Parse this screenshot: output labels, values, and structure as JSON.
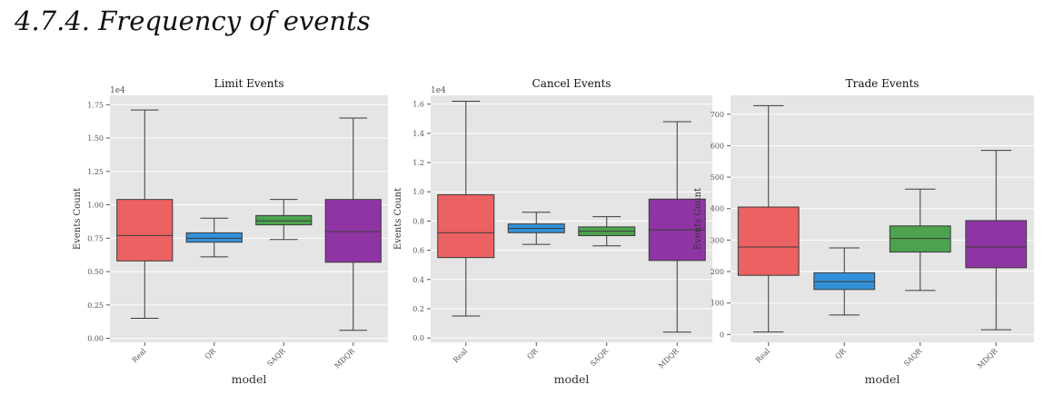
{
  "section": {
    "heading": "4.7.4.  Frequency of events"
  },
  "colors": {
    "panel_bg": "#e5e5e5",
    "grid": "#ffffff",
    "box_edge": "#3a3a3a",
    "series": {
      "Real": "#ec6162",
      "QR": "#3491d9",
      "SAQR": "#4da24f",
      "MDQR": "#8e35a3"
    }
  },
  "chart_data": [
    {
      "type": "box",
      "title": "Limit Events",
      "xlabel": "model",
      "ylabel": "Events Count",
      "scale_label": "1e4",
      "categories": [
        "Real",
        "QR",
        "SAQR",
        "MDQR"
      ],
      "ylim": [
        -0.03,
        1.82
      ],
      "yticks": [
        0.0,
        0.25,
        0.5,
        0.75,
        1.0,
        1.25,
        1.5,
        1.75
      ],
      "ytick_labels": [
        "0.00",
        "0.25",
        "0.50",
        "0.75",
        "1.00",
        "1.25",
        "1.50",
        "1.75"
      ],
      "grid": true,
      "boxes": [
        {
          "category": "Real",
          "whisker_low": 0.15,
          "q1": 0.58,
          "median": 0.77,
          "q3": 1.04,
          "whisker_high": 1.71
        },
        {
          "category": "QR",
          "whisker_low": 0.61,
          "q1": 0.72,
          "median": 0.75,
          "q3": 0.79,
          "whisker_high": 0.9
        },
        {
          "category": "SAQR",
          "whisker_low": 0.74,
          "q1": 0.85,
          "median": 0.88,
          "q3": 0.92,
          "whisker_high": 1.04
        },
        {
          "category": "MDQR",
          "whisker_low": 0.06,
          "q1": 0.57,
          "median": 0.8,
          "q3": 1.04,
          "whisker_high": 1.65
        }
      ]
    },
    {
      "type": "box",
      "title": "Cancel Events",
      "xlabel": "model",
      "ylabel": "Events Count",
      "scale_label": "1e4",
      "categories": [
        "Real",
        "QR",
        "SAQR",
        "MDQR"
      ],
      "ylim": [
        -0.03,
        1.66
      ],
      "yticks": [
        0.0,
        0.2,
        0.4,
        0.6,
        0.8,
        1.0,
        1.2,
        1.4,
        1.6
      ],
      "ytick_labels": [
        "0.0",
        "0.2",
        "0.4",
        "0.6",
        "0.8",
        "1.0",
        "1.2",
        "1.4",
        "1.6"
      ],
      "grid": true,
      "boxes": [
        {
          "category": "Real",
          "whisker_low": 0.15,
          "q1": 0.55,
          "median": 0.72,
          "q3": 0.98,
          "whisker_high": 1.62
        },
        {
          "category": "QR",
          "whisker_low": 0.64,
          "q1": 0.72,
          "median": 0.75,
          "q3": 0.78,
          "whisker_high": 0.86
        },
        {
          "category": "SAQR",
          "whisker_low": 0.63,
          "q1": 0.7,
          "median": 0.73,
          "q3": 0.76,
          "whisker_high": 0.83
        },
        {
          "category": "MDQR",
          "whisker_low": 0.04,
          "q1": 0.53,
          "median": 0.74,
          "q3": 0.95,
          "whisker_high": 1.48
        }
      ]
    },
    {
      "type": "box",
      "title": "Trade Events",
      "xlabel": "model",
      "ylabel": "Events Count",
      "scale_label": "",
      "categories": [
        "Real",
        "QR",
        "SAQR",
        "MDQR"
      ],
      "ylim": [
        -25,
        760
      ],
      "yticks": [
        0,
        100,
        200,
        300,
        400,
        500,
        600,
        700
      ],
      "ytick_labels": [
        "0",
        "100",
        "200",
        "300",
        "400",
        "500",
        "600",
        "700"
      ],
      "grid": true,
      "boxes": [
        {
          "category": "Real",
          "whisker_low": 8,
          "q1": 188,
          "median": 278,
          "q3": 405,
          "whisker_high": 727
        },
        {
          "category": "QR",
          "whisker_low": 62,
          "q1": 143,
          "median": 168,
          "q3": 196,
          "whisker_high": 275
        },
        {
          "category": "SAQR",
          "whisker_low": 140,
          "q1": 262,
          "median": 305,
          "q3": 345,
          "whisker_high": 462
        },
        {
          "category": "MDQR",
          "whisker_low": 15,
          "q1": 212,
          "median": 278,
          "q3": 362,
          "whisker_high": 585
        }
      ]
    }
  ]
}
